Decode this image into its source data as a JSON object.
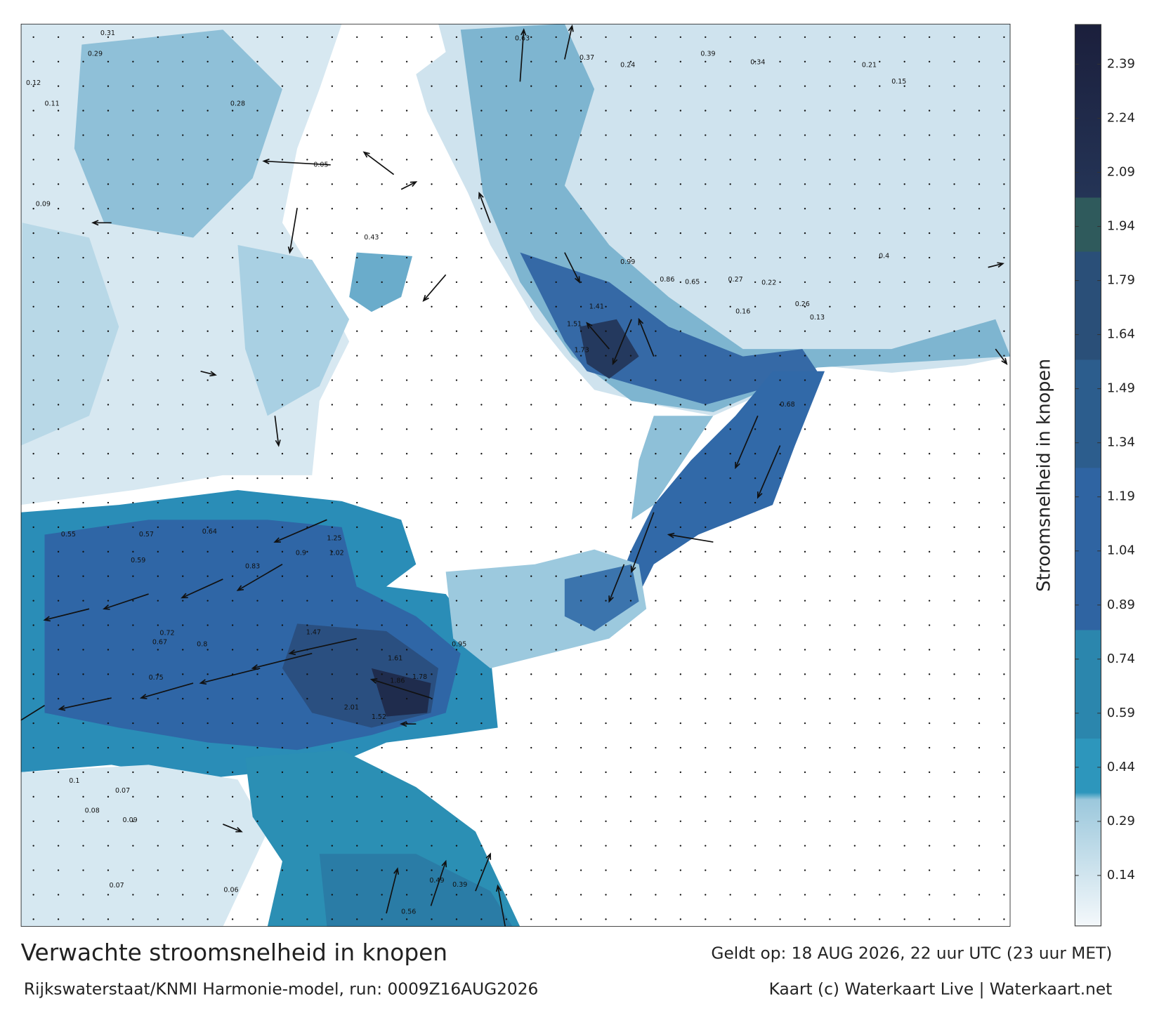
{
  "map": {
    "title": "Verwachte stroomsnelheid in knopen",
    "valid": "Geldt op: 18 AUG 2026, 22 uur UTC (23 uur MET)",
    "model": "Rijkswaterstaat/KNMI Harmonie-model, run: 0009Z16AUG2026",
    "credit": "Kaart (c) Waterkaart Live | Waterkaart.net",
    "current_labels": [
      0.31,
      0.29,
      0.12,
      0.09,
      0.05,
      0.63,
      0.37,
      0.24,
      0.39,
      0.34,
      0.21,
      0.99,
      1.41,
      1.51,
      1.73,
      0.86,
      0.65,
      0.27,
      0.22,
      0.16,
      0.13,
      1.25,
      1.02,
      0.83,
      0.57,
      0.55,
      0.59,
      1.47,
      1.61,
      1.86,
      1.78,
      2.01,
      1.52,
      0.75,
      0.72,
      0.67,
      0.8,
      0.1,
      0.07,
      0.08,
      0.09,
      0.07,
      0.06,
      0.49,
      0.39,
      0.56,
      0.11,
      0.15,
      0.28,
      0.43,
      0.26,
      0.64,
      0.9,
      0.95,
      0.68,
      0.4
    ]
  },
  "colorbar": {
    "label": "Stroomsnelheid in knopen",
    "lim": [
      0,
      2.5
    ],
    "ticks": [
      0.14,
      0.29,
      0.44,
      0.59,
      0.74,
      0.89,
      1.04,
      1.19,
      1.34,
      1.49,
      1.64,
      1.79,
      1.94,
      2.09,
      2.24,
      2.39
    ]
  }
}
